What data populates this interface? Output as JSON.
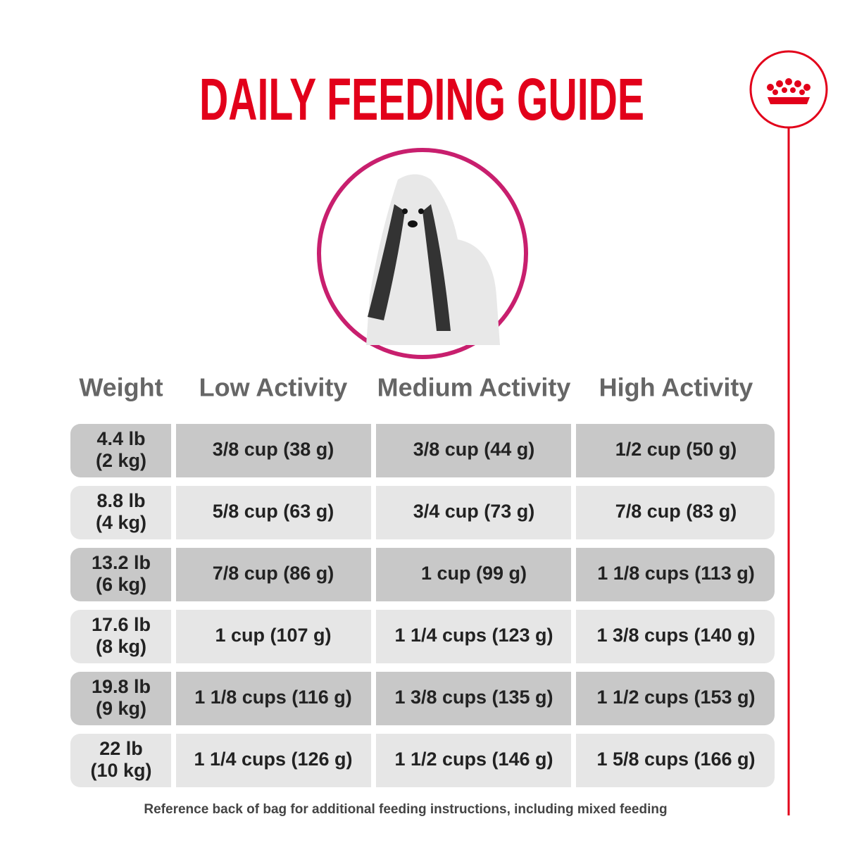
{
  "title": "DAILY FEEDING GUIDE",
  "table": {
    "headers": [
      "Weight",
      "Low Activity",
      "Medium Activity",
      "High Activity"
    ],
    "rows": [
      [
        [
          "4.4 lb",
          "(2 kg)"
        ],
        "3/8 cup (38 g)",
        "3/8 cup (44 g)",
        "1/2 cup (50 g)"
      ],
      [
        [
          "8.8 lb",
          "(4 kg)"
        ],
        "5/8 cup (63 g)",
        "3/4 cup (73 g)",
        "7/8 cup (83 g)"
      ],
      [
        [
          "13.2 lb",
          "(6 kg)"
        ],
        "7/8 cup (86 g)",
        "1 cup (99 g)",
        "1 1/8 cups (113 g)"
      ],
      [
        [
          "17.6 lb",
          "(8 kg)"
        ],
        "1 cup (107 g)",
        "1 1/4 cups (123 g)",
        "1 3/8 cups (140 g)"
      ],
      [
        [
          "19.8 lb",
          "(9 kg)"
        ],
        "1 1/8 cups (116 g)",
        "1 3/8 cups (135 g)",
        "1 1/2 cups (153 g)"
      ],
      [
        [
          "22 lb",
          "(10 kg)"
        ],
        "1 1/4 cups (126 g)",
        "1 1/2 cups (146 g)",
        "1 5/8 cups (166 g)"
      ]
    ]
  },
  "footnote": "Reference back of bag for additional feeding instructions, including mixed feeding"
}
